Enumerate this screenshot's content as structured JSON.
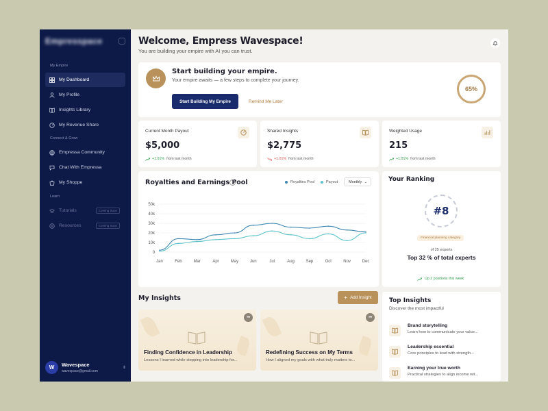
{
  "brand": {
    "name": "Empresspace"
  },
  "sidebar": {
    "section1": "My Empire",
    "section2": "Connect & Grow",
    "section3": "Learn",
    "items": [
      {
        "label": "My Dashboard",
        "icon": "dashboard-icon"
      },
      {
        "label": "My Profile",
        "icon": "user-icon"
      },
      {
        "label": "Insights Library",
        "icon": "book-icon"
      },
      {
        "label": "My Revenue Share",
        "icon": "revenue-icon"
      },
      {
        "label": "Empressa Community",
        "icon": "community-icon"
      },
      {
        "label": "Chat With Empressa",
        "icon": "chat-icon"
      },
      {
        "label": "My Shoppe",
        "icon": "shop-icon"
      },
      {
        "label": "Tutorials",
        "icon": "tutorial-icon",
        "badge": "Coming Soon"
      },
      {
        "label": "Resources",
        "icon": "resources-icon",
        "badge": "Coming Soon"
      }
    ],
    "user": {
      "initial": "W",
      "name": "Wavespace",
      "email": "wavespace@gmail.com"
    }
  },
  "header": {
    "title": "Welcome, Empress Wavespace!",
    "subtitle": "You are building your empire with AI you can trust."
  },
  "hero": {
    "title": "Start building your empire.",
    "subtitle": "Your empire awaits — a few steps to complete your journey.",
    "primary_label": "Start Building My Empire",
    "secondary_label": "Remind Me Later",
    "progress": "65%"
  },
  "stats": [
    {
      "label": "Current Month Payout",
      "value": "$5,000",
      "delta": "+1.01%",
      "note": "from last month",
      "trend": "up",
      "icon": "revenue-icon"
    },
    {
      "label": "Shared Insights",
      "value": "$2,775",
      "delta": "+1.01%",
      "note": "from last month",
      "trend": "down",
      "icon": "book-icon"
    },
    {
      "label": "Weighted Usage",
      "value": "215",
      "delta": "+1.01%",
      "note": "from last month",
      "trend": "up",
      "icon": "chart-icon"
    }
  ],
  "chart_panel": {
    "title": "Royalties and Earnings Pool",
    "period": "Monthly"
  },
  "chart_data": {
    "type": "line",
    "title": "Royalties and Earnings Pool",
    "categories": [
      "Jan",
      "Feb",
      "Mar",
      "Apr",
      "May",
      "Jun",
      "Jul",
      "Aug",
      "Sep",
      "Oct",
      "Nov",
      "Dec"
    ],
    "yticks": [
      "0",
      "10k",
      "20k",
      "30k",
      "40k",
      "50k"
    ],
    "ylim": [
      0,
      50000
    ],
    "legend": "top-right",
    "series": [
      {
        "name": "Royalties Pool",
        "color": "#3b86b0",
        "values": [
          2000,
          14000,
          13000,
          18000,
          20000,
          28000,
          30000,
          26000,
          25000,
          27000,
          23000,
          21000
        ]
      },
      {
        "name": "Payout",
        "color": "#5bc3c8",
        "values": [
          1000,
          9000,
          11000,
          13000,
          14000,
          17000,
          22000,
          18000,
          14000,
          19000,
          12000,
          20000
        ]
      }
    ]
  },
  "ranking": {
    "title": "Your Ranking",
    "rank": "#8",
    "category": "Financial planning category",
    "of": "of 25 experts",
    "top": "Top 32 % of total experts",
    "change": "Up 2 positions this week"
  },
  "insights": {
    "title": "My Insights",
    "add_label": "Add Insight",
    "cards": [
      {
        "title": "Finding Confidence in Leadership",
        "desc": "Lessons I learned while stepping into leadership for..."
      },
      {
        "title": "Redefining Success on My Terms",
        "desc": "How I aligned my goals with what truly matters to..."
      }
    ]
  },
  "top_insights": {
    "title": "Top Insights",
    "subtitle": "Discover the most impactful",
    "items": [
      {
        "title": "Brand storytelling",
        "desc": "Learn how to communicate your value..."
      },
      {
        "title": "Leadership essential",
        "desc": "Core principles to lead with strength..."
      },
      {
        "title": "Earning your true worth",
        "desc": "Practical strategies to align income wit..."
      }
    ]
  },
  "colors": {
    "sidebar": "#0d1a47",
    "primary": "#1a2b6b",
    "accent": "#b8925a",
    "up": "#2e9b4a",
    "down": "#d9534f"
  }
}
